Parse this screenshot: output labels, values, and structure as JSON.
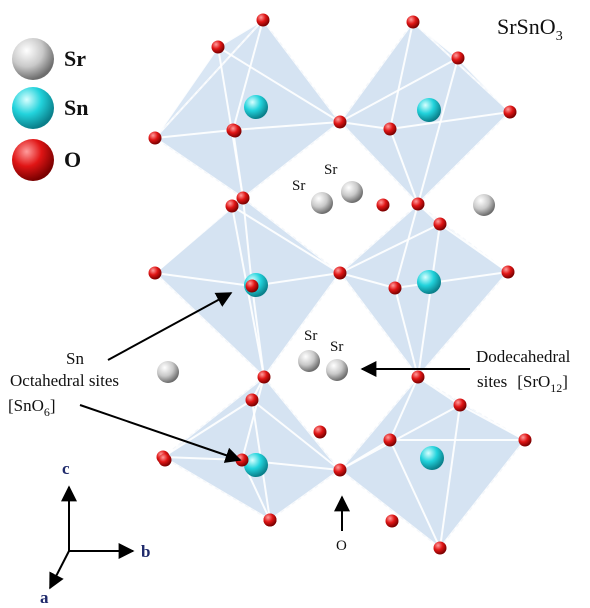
{
  "formula": {
    "main": "SrSnO",
    "sub": "3"
  },
  "legend": [
    {
      "label": "Sr",
      "color": "#cfcfcf"
    },
    {
      "label": "Sn",
      "color": "#22d3dc"
    },
    {
      "label": "O",
      "color": "#e01515"
    }
  ],
  "atom_labels": {
    "sr1": "Sr",
    "sr2": "Sr",
    "sr3": "Sr",
    "sr4": "Sr",
    "o": "O"
  },
  "annotations": {
    "sn_title": "Sn",
    "sn_line2": "Octahedral sites",
    "sn_formula_main": "[SnO",
    "sn_formula_sub": "6",
    "sn_formula_close": "]",
    "dodeca_line1": "Dodecahedral",
    "dodeca_line2_prefix": "sites",
    "dodeca_formula_main": "[SrO",
    "dodeca_formula_sub": "12",
    "dodeca_formula_close": "]"
  },
  "axes": {
    "c": "c",
    "b": "b",
    "a": "a",
    "color": "#1f2a6b"
  },
  "colors": {
    "polyhedron_fill": "#9fc0e4",
    "polyhedron_edge": "#ffffff",
    "polyhedron_outline": "#8aa4c4",
    "sr": "#cfcfcf",
    "sn": "#22d3dc",
    "o": "#e01515"
  }
}
